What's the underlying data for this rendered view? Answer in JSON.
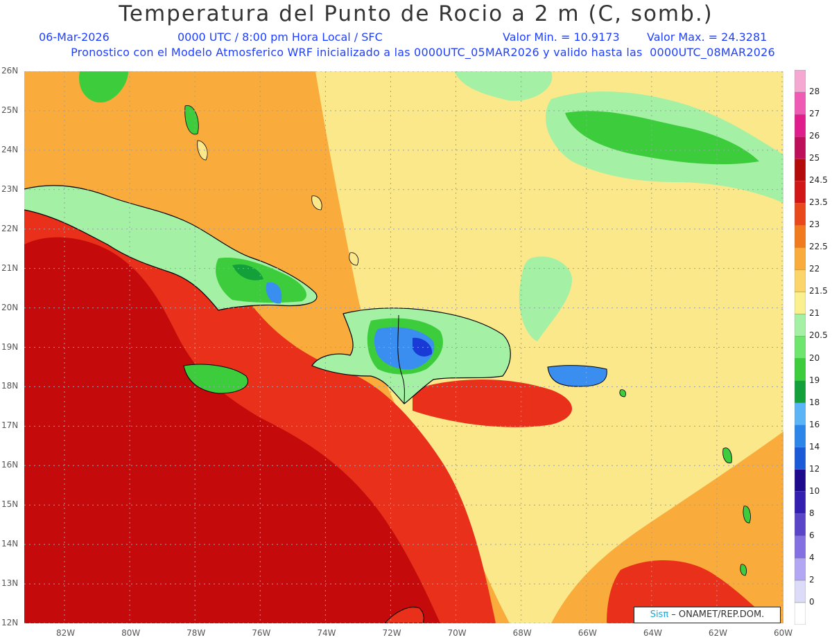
{
  "header": {
    "title": "Temperatura del Punto de Rocio a 2 m (C, somb.)",
    "date": "06-Mar-2026",
    "time": "0000 UTC / 8:00 pm Hora Local / SFC",
    "min_value": "Valor Min. = 10.9173",
    "max_value": "Valor Max. = 24.3281",
    "forecast": "Pronostico con el Modelo Atmosferico WRF inicializado a las 0000UTC_05MAR2026 y valido hasta las  0000UTC_08MAR2026"
  },
  "axes": {
    "lat_labels": [
      "26N",
      "25N",
      "24N",
      "23N",
      "22N",
      "21N",
      "20N",
      "19N",
      "18N",
      "17N",
      "16N",
      "15N",
      "14N",
      "13N",
      "12N"
    ],
    "lon_labels": [
      "82W",
      "80W",
      "78W",
      "76W",
      "74W",
      "72W",
      "70W",
      "68W",
      "66W",
      "64W",
      "62W",
      "60W"
    ]
  },
  "legend": {
    "labels": [
      "0",
      "2",
      "4",
      "6",
      "8",
      "10",
      "12",
      "14",
      "16",
      "18",
      "19",
      "20",
      "20.5",
      "21",
      "21.5",
      "22",
      "22.5",
      "23",
      "23.5",
      "24.5",
      "25",
      "26",
      "27",
      "28"
    ],
    "colors": [
      "#ffffff",
      "#dcdcf8",
      "#b3a6f2",
      "#8470e0",
      "#5a45c8",
      "#3320b0",
      "#1e0a8c",
      "#1a5ad6",
      "#2c86ea",
      "#5ab4f5",
      "#13a03a",
      "#3ccc3c",
      "#6ee66e",
      "#a4f0a4",
      "#fbf08f",
      "#fbd46a",
      "#f9ab3c",
      "#f17a1e",
      "#e8481a",
      "#d01616",
      "#b40a0a",
      "#bd0f5a",
      "#df1e8c",
      "#ee5ab4",
      "#f4a8d2"
    ]
  },
  "credit": {
    "brand": "Sisπ",
    "text": " – ONAMET/REP.DOM."
  },
  "colors": {
    "field_dark_red": "#c40a0a",
    "field_red": "#e8301a",
    "field_orange": "#f7931e",
    "field_light_orange": "#fbb24a",
    "field_yellow": "#fbe88a",
    "field_light_green": "#a4f0a4",
    "field_green": "#3ccc3c",
    "field_dark_green": "#13a03a",
    "field_blue": "#3a8ef0",
    "field_dark_blue": "#1a3ad6",
    "coast": "#000000",
    "title_text": "#333333",
    "info_text": "#1f3fff"
  }
}
